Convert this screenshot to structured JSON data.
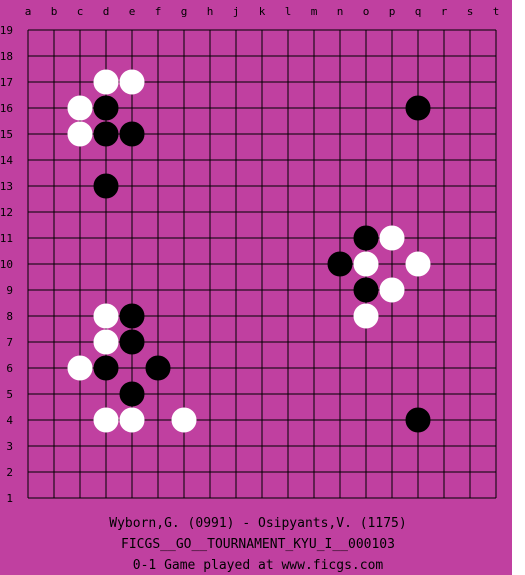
{
  "board": {
    "size": 19,
    "colors": {
      "board_bg": "#c040a0",
      "frame_bg": "#ffffff",
      "line": "#000000",
      "black_stone": "#000000",
      "white_stone": "#ffffff"
    },
    "col_labels": [
      "a",
      "b",
      "c",
      "d",
      "e",
      "f",
      "g",
      "h",
      "j",
      "k",
      "l",
      "m",
      "n",
      "o",
      "p",
      "q",
      "r",
      "s",
      "t"
    ],
    "row_labels": [
      "19",
      "18",
      "17",
      "16",
      "15",
      "14",
      "13",
      "12",
      "11",
      "10",
      "9",
      "8",
      "7",
      "6",
      "5",
      "4",
      "3",
      "2",
      "1"
    ],
    "stones": [
      {
        "color": "white",
        "col": "d",
        "row": 17
      },
      {
        "color": "white",
        "col": "e",
        "row": 17
      },
      {
        "color": "white",
        "col": "c",
        "row": 16
      },
      {
        "color": "black",
        "col": "d",
        "row": 16
      },
      {
        "color": "black",
        "col": "q",
        "row": 16
      },
      {
        "color": "white",
        "col": "c",
        "row": 15
      },
      {
        "color": "black",
        "col": "d",
        "row": 15
      },
      {
        "color": "black",
        "col": "e",
        "row": 15
      },
      {
        "color": "black",
        "col": "d",
        "row": 13
      },
      {
        "color": "black",
        "col": "o",
        "row": 11
      },
      {
        "color": "white",
        "col": "p",
        "row": 11
      },
      {
        "color": "black",
        "col": "n",
        "row": 10
      },
      {
        "color": "white",
        "col": "o",
        "row": 10
      },
      {
        "color": "white",
        "col": "q",
        "row": 10
      },
      {
        "color": "black",
        "col": "o",
        "row": 9
      },
      {
        "color": "white",
        "col": "p",
        "row": 9
      },
      {
        "color": "white",
        "col": "d",
        "row": 8
      },
      {
        "color": "black",
        "col": "e",
        "row": 8
      },
      {
        "color": "white",
        "col": "o",
        "row": 8
      },
      {
        "color": "white",
        "col": "d",
        "row": 7
      },
      {
        "color": "black",
        "col": "e",
        "row": 7
      },
      {
        "color": "white",
        "col": "c",
        "row": 6
      },
      {
        "color": "black",
        "col": "d",
        "row": 6
      },
      {
        "color": "black",
        "col": "f",
        "row": 6
      },
      {
        "color": "black",
        "col": "e",
        "row": 5
      },
      {
        "color": "white",
        "col": "d",
        "row": 4
      },
      {
        "color": "white",
        "col": "e",
        "row": 4
      },
      {
        "color": "white",
        "col": "g",
        "row": 4
      },
      {
        "color": "black",
        "col": "q",
        "row": 4
      }
    ]
  },
  "caption": {
    "players": "Wyborn,G. (0991) - Osipyants,V. (1175)",
    "tournament": "FICGS__GO__TOURNAMENT_KYU_I__000103",
    "result_line": "0-1    Game played at www.ficgs.com"
  }
}
